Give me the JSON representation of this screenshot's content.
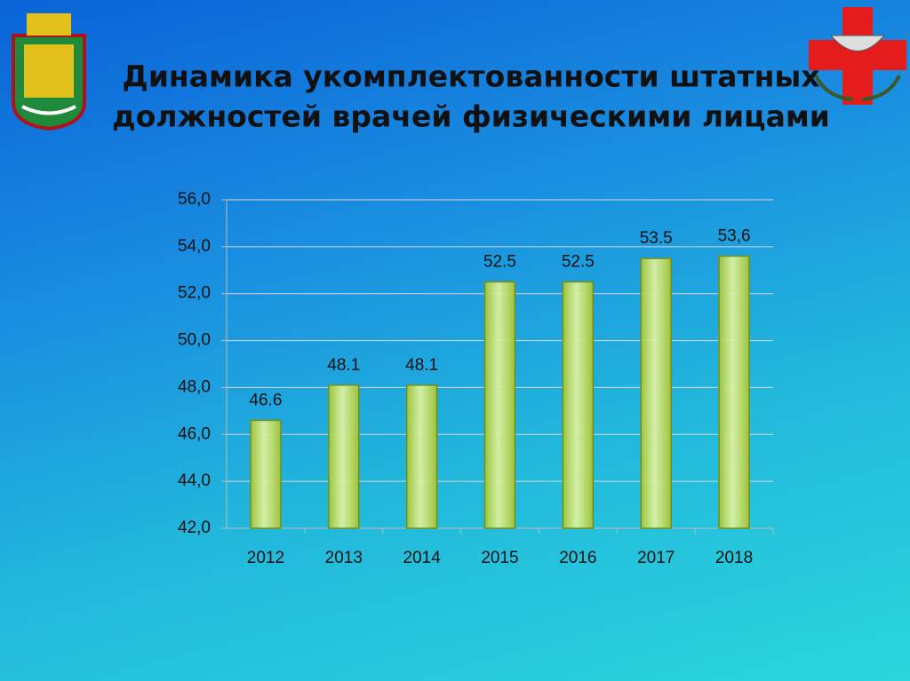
{
  "chart_data": {
    "type": "bar",
    "title": [
      "Динамика укомплектованности штатных",
      "должностей врачей физическими лицами"
    ],
    "categories": [
      "2012",
      "2013",
      "2014",
      "2015",
      "2016",
      "2017",
      "2018"
    ],
    "values": [
      46.6,
      48.1,
      48.1,
      52.5,
      52.5,
      53.5,
      53.6
    ],
    "value_labels": [
      "46.6",
      "48.1",
      "48.1",
      "52.5",
      "52.5",
      "53.5",
      "53,6"
    ],
    "color": "#9cc23a",
    "ylim": [
      42,
      56
    ],
    "yticks": [
      {
        "value": 42,
        "label": "42,0"
      },
      {
        "value": 44,
        "label": "44,0"
      },
      {
        "value": 46,
        "label": "46,0"
      },
      {
        "value": 48,
        "label": "48,0"
      },
      {
        "value": 50,
        "label": "50,0"
      },
      {
        "value": 52,
        "label": "52,0"
      },
      {
        "value": 54,
        "label": "54,0"
      },
      {
        "value": 56,
        "label": "56,0"
      }
    ],
    "grid": true
  }
}
